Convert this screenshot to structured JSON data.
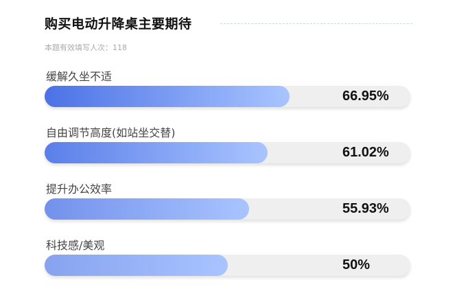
{
  "chart_data": {
    "type": "bar",
    "orientation": "horizontal",
    "title": "购买电动升降桌主要期待",
    "subtitle": "本题有效填写人次：118",
    "categories": [
      "缓解久坐不适",
      "自由调节高度(如站坐交替)",
      "提升办公效率",
      "科技感/美观"
    ],
    "values": [
      66.95,
      61.02,
      55.93,
      50
    ],
    "value_labels": [
      "66.95%",
      "61.02%",
      "55.93%",
      "50%"
    ],
    "xlim": [
      0,
      100
    ],
    "grid": false,
    "colors": {
      "track": "#efefef",
      "bar_end": "#a9c4ff",
      "bar_starts": [
        "#4b72e6",
        "#5a7fe9",
        "#7391ec",
        "#87a3ef"
      ]
    }
  }
}
